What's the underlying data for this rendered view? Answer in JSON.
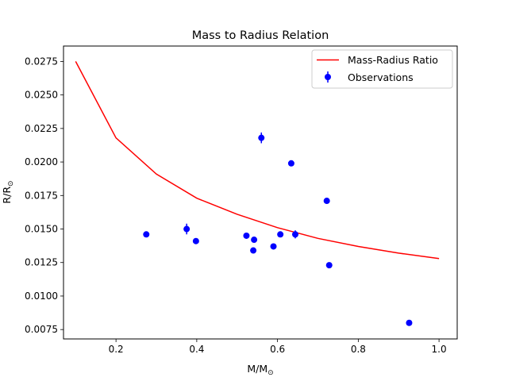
{
  "chart_data": {
    "type": "scatter",
    "title": "Mass to Radius Relation",
    "xlabel": "M/M",
    "xlabel_sub": "⊙",
    "ylabel": "R/R",
    "ylabel_sub": "⊙",
    "xlim": [
      0.07,
      1.045
    ],
    "ylim": [
      0.0068,
      0.02865
    ],
    "xticks": [
      0.2,
      0.4,
      0.6,
      0.8,
      1.0
    ],
    "xtick_labels": [
      "0.2",
      "0.4",
      "0.6",
      "0.8",
      "1.0"
    ],
    "yticks": [
      0.0075,
      0.01,
      0.0125,
      0.015,
      0.0175,
      0.02,
      0.0225,
      0.025,
      0.0275
    ],
    "ytick_labels": [
      "0.0075",
      "0.0100",
      "0.0125",
      "0.0150",
      "0.0175",
      "0.0200",
      "0.0225",
      "0.0250",
      "0.0275"
    ],
    "grid": false,
    "legend_position": "top-right",
    "series": [
      {
        "name": "Mass-Radius Ratio",
        "kind": "line",
        "color": "#ff0000",
        "x": [
          0.1,
          0.2,
          0.3,
          0.4,
          0.5,
          0.6,
          0.7,
          0.8,
          0.9,
          1.0
        ],
        "y": [
          0.0275,
          0.0218,
          0.0191,
          0.0173,
          0.0161,
          0.0151,
          0.0143,
          0.0137,
          0.0132,
          0.0128
        ]
      },
      {
        "name": "Observations",
        "kind": "errorbar",
        "color": "#0000ff",
        "x": [
          0.275,
          0.375,
          0.398,
          0.523,
          0.54,
          0.542,
          0.56,
          0.59,
          0.607,
          0.634,
          0.644,
          0.722,
          0.728,
          0.926
        ],
        "y": [
          0.0146,
          0.015,
          0.0141,
          0.0145,
          0.0134,
          0.0142,
          0.0218,
          0.0137,
          0.0146,
          0.0199,
          0.0146,
          0.0171,
          0.0123,
          0.008
        ],
        "yerr": [
          0.0002,
          0.0004,
          0.0002,
          0.0002,
          0.0002,
          0.0002,
          0.0004,
          0.0002,
          0.0002,
          0.0002,
          0.0003,
          0.0002,
          0.0002,
          0.0002
        ]
      }
    ]
  }
}
